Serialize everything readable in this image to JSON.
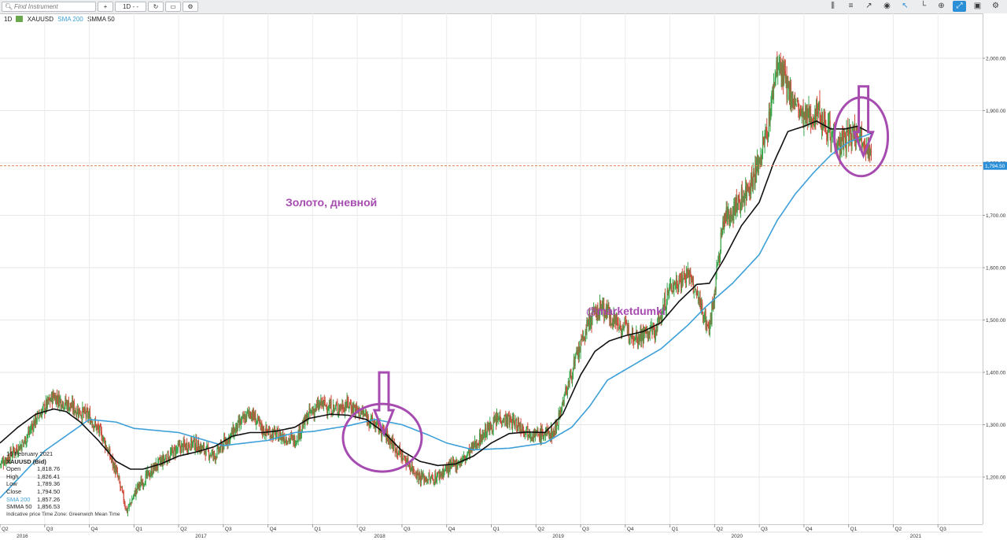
{
  "toolbar": {
    "search_placeholder": "Find Instrument",
    "timeframe": "1D",
    "chart_style": "- -",
    "icons": [
      "plus-icon",
      "refresh-icon",
      "layout-icon",
      "settings-icon",
      "indicators-icon",
      "crosshair-icon",
      "trendline-icon",
      "eye-icon",
      "cursor-icon",
      "draw-icon",
      "fullscreen-icon",
      "zoom-icon",
      "camera-icon",
      "gear-icon"
    ]
  },
  "legend": {
    "interval": "1D",
    "instrument": "XAUUSD",
    "sma": "SMA 200",
    "smma": "SMMA 50"
  },
  "info": {
    "date": "16 February 2021",
    "instrument": "XAUUSD (Bid)",
    "rows": [
      {
        "label": "Open",
        "value": "1,818.76"
      },
      {
        "label": "High",
        "value": "1,826.41"
      },
      {
        "label": "Low",
        "value": "1,789.36"
      },
      {
        "label": "Close",
        "value": "1,794.50"
      },
      {
        "label": "SMA 200",
        "value": "1,857.26"
      },
      {
        "label": "SMMA 50",
        "value": "1,856.53"
      }
    ],
    "footer": "Indicative price   Time Zone: Greenwich Mean Time"
  },
  "annotations": {
    "title": "Золото, дневной",
    "watermark": "@marketdumki"
  },
  "colors": {
    "sma": "#3ea0d8",
    "smma": "#111111",
    "up": "#3aa64c",
    "down": "#cf4b3b",
    "annotation": "#a64cb0",
    "price_line": "#e08050",
    "price_tag": "#2b8fd8"
  },
  "chart_data": {
    "type": "candlestick",
    "instrument": "XAUUSD",
    "interval": "1D",
    "ylim": [
      1100,
      2100
    ],
    "yticks": [
      "1,200.00",
      "1,300.00",
      "1,400.00",
      "1,500.00",
      "1,600.00",
      "1,700.00",
      "1,800.00",
      "1,900.00",
      "2,000.00"
    ],
    "ytick_values": [
      1200,
      1300,
      1400,
      1500,
      1600,
      1700,
      1800,
      1900,
      2000
    ],
    "current_price": 1794.5,
    "current_price_label": "1,794.50",
    "xlim": [
      2016.25,
      2021.75
    ],
    "quarters": [
      {
        "t": 2016.25,
        "label": "Q2"
      },
      {
        "t": 2016.5,
        "label": "Q3"
      },
      {
        "t": 2016.75,
        "label": "Q4"
      },
      {
        "t": 2017.0,
        "label": "Q1"
      },
      {
        "t": 2017.25,
        "label": "Q2"
      },
      {
        "t": 2017.5,
        "label": "Q3"
      },
      {
        "t": 2017.75,
        "label": "Q4"
      },
      {
        "t": 2018.0,
        "label": "Q1"
      },
      {
        "t": 2018.25,
        "label": "Q2"
      },
      {
        "t": 2018.5,
        "label": "Q3"
      },
      {
        "t": 2018.75,
        "label": "Q4"
      },
      {
        "t": 2019.0,
        "label": "Q1"
      },
      {
        "t": 2019.25,
        "label": "Q2"
      },
      {
        "t": 2019.5,
        "label": "Q3"
      },
      {
        "t": 2019.75,
        "label": "Q4"
      },
      {
        "t": 2020.0,
        "label": "Q1"
      },
      {
        "t": 2020.25,
        "label": "Q2"
      },
      {
        "t": 2020.5,
        "label": "Q3"
      },
      {
        "t": 2020.75,
        "label": "Q4"
      },
      {
        "t": 2021.0,
        "label": "Q1"
      },
      {
        "t": 2021.25,
        "label": "Q2"
      },
      {
        "t": 2021.5,
        "label": "Q3"
      }
    ],
    "years": [
      {
        "t": 2016.375,
        "label": "2016"
      },
      {
        "t": 2017.375,
        "label": "2017"
      },
      {
        "t": 2018.375,
        "label": "2018"
      },
      {
        "t": 2019.375,
        "label": "2019"
      },
      {
        "t": 2020.375,
        "label": "2020"
      },
      {
        "t": 2021.375,
        "label": "2021"
      }
    ],
    "price_anchors": [
      [
        2016.25,
        1225
      ],
      [
        2016.38,
        1265
      ],
      [
        2016.45,
        1310
      ],
      [
        2016.55,
        1355
      ],
      [
        2016.62,
        1340
      ],
      [
        2016.75,
        1315
      ],
      [
        2016.82,
        1280
      ],
      [
        2016.9,
        1210
      ],
      [
        2016.96,
        1135
      ],
      [
        2017.02,
        1180
      ],
      [
        2017.12,
        1220
      ],
      [
        2017.25,
        1255
      ],
      [
        2017.33,
        1265
      ],
      [
        2017.45,
        1240
      ],
      [
        2017.53,
        1275
      ],
      [
        2017.65,
        1325
      ],
      [
        2017.72,
        1290
      ],
      [
        2017.8,
        1280
      ],
      [
        2017.9,
        1270
      ],
      [
        2017.98,
        1320
      ],
      [
        2018.05,
        1340
      ],
      [
        2018.12,
        1330
      ],
      [
        2018.2,
        1340
      ],
      [
        2018.3,
        1315
      ],
      [
        2018.4,
        1285
      ],
      [
        2018.5,
        1240
      ],
      [
        2018.6,
        1200
      ],
      [
        2018.67,
        1195
      ],
      [
        2018.75,
        1215
      ],
      [
        2018.85,
        1235
      ],
      [
        2018.95,
        1280
      ],
      [
        2019.05,
        1315
      ],
      [
        2019.15,
        1300
      ],
      [
        2019.25,
        1280
      ],
      [
        2019.35,
        1285
      ],
      [
        2019.45,
        1400
      ],
      [
        2019.55,
        1500
      ],
      [
        2019.62,
        1525
      ],
      [
        2019.72,
        1490
      ],
      [
        2019.82,
        1470
      ],
      [
        2019.92,
        1480
      ],
      [
        2020.0,
        1560
      ],
      [
        2020.1,
        1590
      ],
      [
        2020.18,
        1520
      ],
      [
        2020.22,
        1480
      ],
      [
        2020.3,
        1690
      ],
      [
        2020.4,
        1730
      ],
      [
        2020.48,
        1780
      ],
      [
        2020.55,
        1870
      ],
      [
        2020.6,
        1990
      ],
      [
        2020.66,
        1940
      ],
      [
        2020.75,
        1880
      ],
      [
        2020.83,
        1900
      ],
      [
        2020.9,
        1860
      ],
      [
        2020.95,
        1830
      ],
      [
        2021.0,
        1850
      ],
      [
        2021.05,
        1860
      ],
      [
        2021.1,
        1840
      ],
      [
        2021.13,
        1795
      ]
    ],
    "sma200_anchors": [
      [
        2016.25,
        1160
      ],
      [
        2016.5,
        1250
      ],
      [
        2016.75,
        1310
      ],
      [
        2016.9,
        1305
      ],
      [
        2017.0,
        1293
      ],
      [
        2017.25,
        1285
      ],
      [
        2017.5,
        1260
      ],
      [
        2017.75,
        1270
      ],
      [
        2017.9,
        1285
      ],
      [
        2018.0,
        1287
      ],
      [
        2018.2,
        1298
      ],
      [
        2018.35,
        1310
      ],
      [
        2018.5,
        1300
      ],
      [
        2018.65,
        1280
      ],
      [
        2018.75,
        1265
      ],
      [
        2018.9,
        1252
      ],
      [
        2019.1,
        1255
      ],
      [
        2019.3,
        1265
      ],
      [
        2019.45,
        1295
      ],
      [
        2019.55,
        1335
      ],
      [
        2019.65,
        1385
      ],
      [
        2019.8,
        1415
      ],
      [
        2019.95,
        1445
      ],
      [
        2020.1,
        1490
      ],
      [
        2020.2,
        1525
      ],
      [
        2020.35,
        1570
      ],
      [
        2020.5,
        1625
      ],
      [
        2020.6,
        1690
      ],
      [
        2020.7,
        1740
      ],
      [
        2020.8,
        1780
      ],
      [
        2020.9,
        1815
      ],
      [
        2021.0,
        1840
      ],
      [
        2021.13,
        1857
      ]
    ],
    "smma50_anchors": [
      [
        2016.25,
        1265
      ],
      [
        2016.35,
        1295
      ],
      [
        2016.45,
        1320
      ],
      [
        2016.55,
        1330
      ],
      [
        2016.62,
        1325
      ],
      [
        2016.7,
        1305
      ],
      [
        2016.8,
        1270
      ],
      [
        2016.9,
        1230
      ],
      [
        2016.98,
        1215
      ],
      [
        2017.05,
        1215
      ],
      [
        2017.15,
        1225
      ],
      [
        2017.25,
        1240
      ],
      [
        2017.35,
        1248
      ],
      [
        2017.45,
        1258
      ],
      [
        2017.55,
        1278
      ],
      [
        2017.65,
        1285
      ],
      [
        2017.72,
        1285
      ],
      [
        2017.8,
        1288
      ],
      [
        2017.9,
        1295
      ],
      [
        2017.98,
        1312
      ],
      [
        2018.1,
        1320
      ],
      [
        2018.2,
        1318
      ],
      [
        2018.3,
        1310
      ],
      [
        2018.4,
        1285
      ],
      [
        2018.5,
        1250
      ],
      [
        2018.6,
        1230
      ],
      [
        2018.7,
        1222
      ],
      [
        2018.8,
        1225
      ],
      [
        2018.9,
        1240
      ],
      [
        2019.0,
        1265
      ],
      [
        2019.1,
        1283
      ],
      [
        2019.2,
        1286
      ],
      [
        2019.3,
        1285
      ],
      [
        2019.4,
        1320
      ],
      [
        2019.5,
        1395
      ],
      [
        2019.58,
        1440
      ],
      [
        2019.66,
        1460
      ],
      [
        2019.75,
        1470
      ],
      [
        2019.85,
        1478
      ],
      [
        2019.95,
        1495
      ],
      [
        2020.05,
        1535
      ],
      [
        2020.15,
        1568
      ],
      [
        2020.22,
        1570
      ],
      [
        2020.3,
        1615
      ],
      [
        2020.4,
        1680
      ],
      [
        2020.5,
        1725
      ],
      [
        2020.58,
        1800
      ],
      [
        2020.66,
        1860
      ],
      [
        2020.75,
        1870
      ],
      [
        2020.82,
        1880
      ],
      [
        2020.9,
        1865
      ],
      [
        2020.98,
        1865
      ],
      [
        2021.05,
        1870
      ],
      [
        2021.13,
        1856
      ]
    ],
    "marks": [
      {
        "type": "circle-arrow",
        "t": 2018.39,
        "price": 1275
      },
      {
        "type": "circle-arrow",
        "t": 2021.07,
        "price": 1850
      }
    ]
  }
}
